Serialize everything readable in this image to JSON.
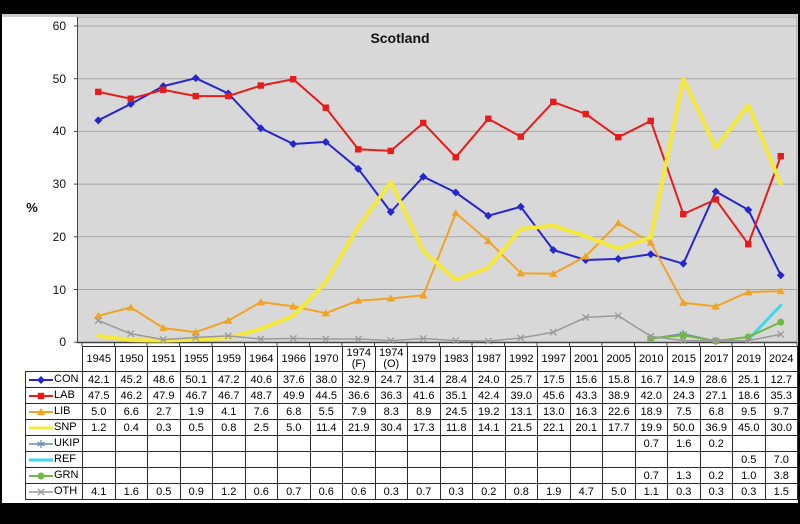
{
  "chart_data": {
    "type": "line",
    "title": "Scotland",
    "ylabel": "%",
    "ylim": [
      0,
      60
    ],
    "yticks": [
      60,
      50,
      40,
      30,
      20,
      10,
      0
    ],
    "grid": true,
    "plot_bg": "#d8d8d8",
    "grid_color": "#a6a6a6",
    "axis_color": "#444444",
    "legend_position": "table-left",
    "categories": [
      "1945",
      "1950",
      "1951",
      "1955",
      "1959",
      "1964",
      "1966",
      "1970",
      "1974 (F)",
      "1974 (O)",
      "1979",
      "1983",
      "1987",
      "1992",
      "1997",
      "2001",
      "2005",
      "2010",
      "2015",
      "2017",
      "2019",
      "2024"
    ],
    "series": [
      {
        "name": "CON",
        "color": "#2626cf",
        "marker": "diamond",
        "line_width": 2,
        "values": [
          42.1,
          45.2,
          48.6,
          50.1,
          47.2,
          40.6,
          37.6,
          38.0,
          32.9,
          24.7,
          31.4,
          28.4,
          24.0,
          25.7,
          17.5,
          15.6,
          15.8,
          16.7,
          14.9,
          28.6,
          25.1,
          12.7
        ]
      },
      {
        "name": "LAB",
        "color": "#e81b1b",
        "marker": "square",
        "line_width": 2,
        "values": [
          47.5,
          46.2,
          47.9,
          46.7,
          46.7,
          48.7,
          49.9,
          44.5,
          36.6,
          36.3,
          41.6,
          35.1,
          42.4,
          39.0,
          45.6,
          43.3,
          38.9,
          42.0,
          24.3,
          27.1,
          18.6,
          35.3
        ]
      },
      {
        "name": "LIB",
        "color": "#f0a425",
        "marker": "triangle",
        "line_width": 2,
        "values": [
          5.0,
          6.6,
          2.7,
          1.9,
          4.1,
          7.6,
          6.8,
          5.5,
          7.9,
          8.3,
          8.9,
          24.5,
          19.2,
          13.1,
          13.0,
          16.3,
          22.6,
          18.9,
          7.5,
          6.8,
          9.5,
          9.7
        ]
      },
      {
        "name": "SNP",
        "color": "#f5e93c",
        "marker": "none",
        "line_width": 4,
        "values": [
          1.2,
          0.4,
          0.3,
          0.5,
          0.8,
          2.5,
          5.0,
          11.4,
          21.9,
          30.4,
          17.3,
          11.8,
          14.1,
          21.5,
          22.1,
          20.1,
          17.7,
          19.9,
          50.0,
          36.9,
          45.0,
          30.0
        ]
      },
      {
        "name": "UKIP",
        "color": "#6a89b5",
        "marker": "asterisk",
        "line_width": 1.5,
        "values": [
          null,
          null,
          null,
          null,
          null,
          null,
          null,
          null,
          null,
          null,
          null,
          null,
          null,
          null,
          null,
          null,
          null,
          0.7,
          1.6,
          0.2,
          null,
          null
        ]
      },
      {
        "name": "REF",
        "color": "#3fd9ee",
        "marker": "none",
        "line_width": 3,
        "values": [
          null,
          null,
          null,
          null,
          null,
          null,
          null,
          null,
          null,
          null,
          null,
          null,
          null,
          null,
          null,
          null,
          null,
          null,
          null,
          null,
          0.5,
          7.0
        ]
      },
      {
        "name": "GRN",
        "color": "#72b944",
        "marker": "circle",
        "line_width": 2,
        "values": [
          null,
          null,
          null,
          null,
          null,
          null,
          null,
          null,
          null,
          null,
          null,
          null,
          null,
          null,
          null,
          null,
          null,
          0.7,
          1.3,
          0.2,
          1.0,
          3.8
        ]
      },
      {
        "name": "OTH",
        "color": "#9a9a9a",
        "marker": "x",
        "line_width": 1.5,
        "values": [
          4.1,
          1.6,
          0.5,
          0.9,
          1.2,
          0.6,
          0.7,
          0.6,
          0.6,
          0.3,
          0.7,
          0.3,
          0.2,
          0.8,
          1.9,
          4.7,
          5.0,
          1.1,
          0.3,
          0.3,
          0.3,
          1.5
        ]
      }
    ]
  }
}
